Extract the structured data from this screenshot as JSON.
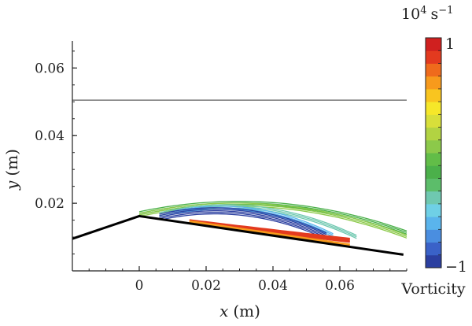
{
  "chart_data": {
    "type": "contour",
    "xlabel": "x",
    "xunit": "(m)",
    "ylabel": "y",
    "yunit": "(m)",
    "xlim": [
      -0.02,
      0.08
    ],
    "ylim": [
      0.0,
      0.068
    ],
    "xticks": [
      0,
      0.02,
      0.04,
      0.06
    ],
    "xtick_labels": [
      "0",
      "0.02",
      "0.04",
      "0.06"
    ],
    "yticks": [
      0.02,
      0.04,
      0.06
    ],
    "ytick_labels": [
      "0.02",
      "0.04",
      "0.06"
    ],
    "free_surface_y": 0.0505,
    "bed_profile": [
      [
        -0.02,
        0.0095
      ],
      [
        0.0,
        0.0162
      ],
      [
        0.079,
        0.0048
      ]
    ],
    "colorbar": {
      "title_base": "10",
      "title_exp": "4",
      "title_unit": "s",
      "title_unit_exp": "−1",
      "max_label": "1",
      "min_label": "−1",
      "name": "Vorticity",
      "range": [
        -1,
        1
      ],
      "colors": [
        "#2b3fa0",
        "#3a62c8",
        "#4a8ee0",
        "#5ab4ec",
        "#6fd0e6",
        "#6fc8b0",
        "#5cbd6a",
        "#4bb04a",
        "#62bd48",
        "#8cc94a",
        "#b2d342",
        "#d8df3a",
        "#f6e729",
        "#f9c51f",
        "#f79a1c",
        "#ef6b1c",
        "#e33a1f",
        "#d0201f"
      ]
    },
    "contour_bands": [
      {
        "level": "positive-weak",
        "color": "#4bb04a",
        "x": [
          0.0,
          0.032,
          0.08
        ],
        "top": [
          0.0175,
          0.0202,
          0.0118
        ]
      },
      {
        "level": "positive-weak",
        "color": "#8cc94a",
        "x": [
          0.0,
          0.032,
          0.08
        ],
        "top": [
          0.017,
          0.0196,
          0.0106
        ]
      },
      {
        "level": "near-zero",
        "color": "#6fc8b0",
        "x": [
          0.006,
          0.03,
          0.065
        ],
        "top": [
          0.0172,
          0.019,
          0.0105
        ]
      },
      {
        "level": "negative-weak",
        "color": "#5ab4ec",
        "x": [
          0.008,
          0.03,
          0.058
        ],
        "top": [
          0.0172,
          0.0186,
          0.011
        ]
      },
      {
        "level": "negative-strong",
        "color": "#2b3fa0",
        "x": [
          0.006,
          0.03,
          0.056
        ],
        "top": [
          0.0168,
          0.0182,
          0.0112
        ]
      },
      {
        "level": "positive-strong",
        "color": "#e33a1f",
        "x": [
          0.015,
          0.035,
          0.063
        ],
        "top": [
          0.015,
          0.0122,
          0.0095
        ]
      }
    ]
  }
}
